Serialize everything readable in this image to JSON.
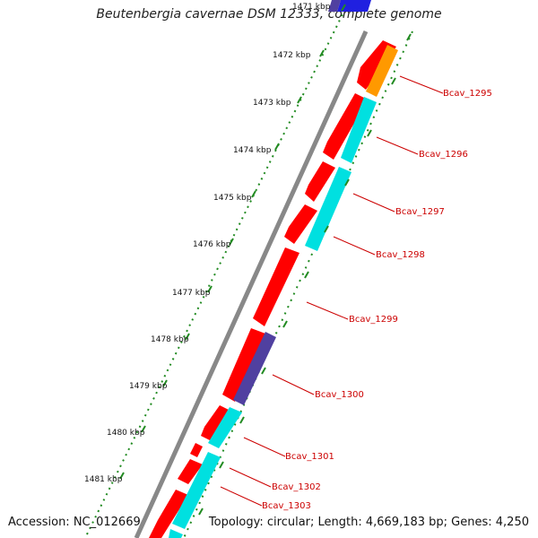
{
  "title": "Beutenbergia cavernae DSM 12333, complete genome",
  "footer": {
    "accession": "Accession: NC_012669",
    "summary": "Topology: circular; Length: 4,669,183 bp; Genes: 4,250"
  },
  "kbp_labels": [
    "1471 kbp",
    "1472 kbp",
    "1473 kbp",
    "1474 kbp",
    "1475 kbp",
    "1476 kbp",
    "1477 kbp",
    "1478 kbp",
    "1479 kbp",
    "1480 kbp",
    "1481 kbp"
  ],
  "gene_labels": [
    "Bcav_1295",
    "Bcav_1296",
    "Bcav_1297",
    "Bcav_1298",
    "Bcav_1299",
    "Bcav_1300",
    "Bcav_1301",
    "Bcav_1302",
    "Bcav_1303"
  ],
  "colors": {
    "cds": "#ff0000",
    "cyan": "#00e0e0",
    "orange": "#ff9900",
    "purple": "#5040a0",
    "blue": "#2020e0",
    "backbone": "#888888",
    "dots": "#228b22",
    "label": "#cc0000"
  }
}
